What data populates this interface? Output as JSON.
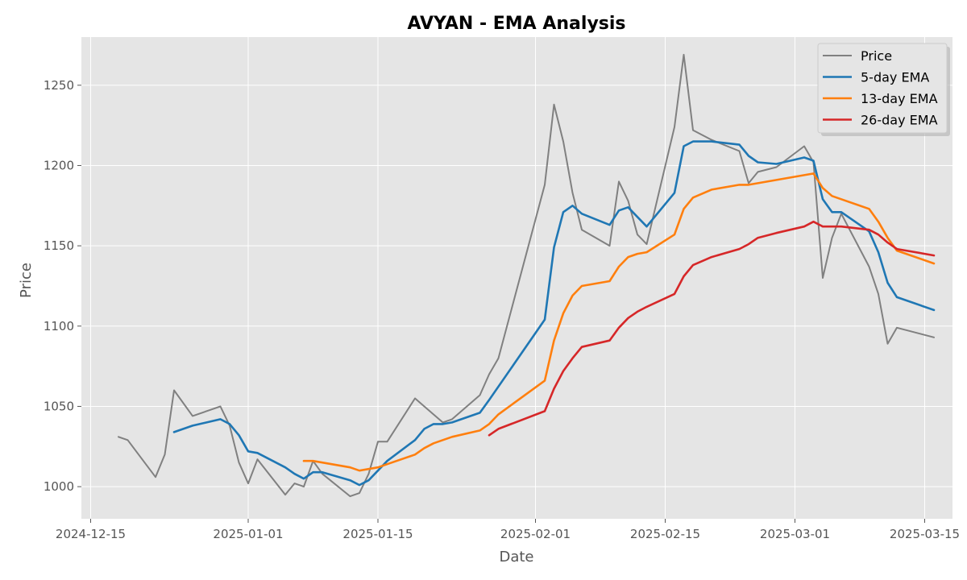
{
  "chart_data": {
    "type": "line",
    "title": "AVYAN - EMA Analysis",
    "xlabel": "Date",
    "ylabel": "Price",
    "grid": true,
    "legend_position": "top-right",
    "x_domain": [
      "2024-12-14",
      "2025-03-18"
    ],
    "ylim": [
      980,
      1280
    ],
    "x_ticks": [
      "2024-12-15",
      "2025-01-01",
      "2025-01-15",
      "2025-02-01",
      "2025-02-15",
      "2025-03-01",
      "2025-03-15"
    ],
    "y_ticks": [
      1000,
      1050,
      1100,
      1150,
      1200,
      1250
    ],
    "series": [
      {
        "name": "Price",
        "color": "#808080",
        "points": [
          [
            "2024-12-18",
            1031
          ],
          [
            "2024-12-19",
            1029
          ],
          [
            "2024-12-22",
            1006
          ],
          [
            "2024-12-23",
            1020
          ],
          [
            "2024-12-24",
            1060
          ],
          [
            "2024-12-26",
            1044
          ],
          [
            "2024-12-29",
            1050
          ],
          [
            "2024-12-30",
            1038
          ],
          [
            "2024-12-31",
            1015
          ],
          [
            "2025-01-01",
            1002
          ],
          [
            "2025-01-02",
            1017
          ],
          [
            "2025-01-05",
            995
          ],
          [
            "2025-01-06",
            1002
          ],
          [
            "2025-01-07",
            1000
          ],
          [
            "2025-01-08",
            1016
          ],
          [
            "2025-01-09",
            1008
          ],
          [
            "2025-01-12",
            994
          ],
          [
            "2025-01-13",
            996
          ],
          [
            "2025-01-14",
            1008
          ],
          [
            "2025-01-15",
            1028
          ],
          [
            "2025-01-16",
            1028
          ],
          [
            "2025-01-19",
            1055
          ],
          [
            "2025-01-20",
            1050
          ],
          [
            "2025-01-22",
            1040
          ],
          [
            "2025-01-23",
            1042
          ],
          [
            "2025-01-26",
            1057
          ],
          [
            "2025-01-27",
            1070
          ],
          [
            "2025-01-28",
            1080
          ],
          [
            "2025-02-02",
            1188
          ],
          [
            "2025-02-03",
            1238
          ],
          [
            "2025-02-04",
            1215
          ],
          [
            "2025-02-05",
            1183
          ],
          [
            "2025-02-06",
            1160
          ],
          [
            "2025-02-09",
            1150
          ],
          [
            "2025-02-10",
            1190
          ],
          [
            "2025-02-11",
            1178
          ],
          [
            "2025-02-12",
            1157
          ],
          [
            "2025-02-13",
            1151
          ],
          [
            "2025-02-16",
            1224
          ],
          [
            "2025-02-17",
            1269
          ],
          [
            "2025-02-18",
            1222
          ],
          [
            "2025-02-19",
            1219
          ],
          [
            "2025-02-20",
            1216
          ],
          [
            "2025-02-23",
            1209
          ],
          [
            "2025-02-24",
            1189
          ],
          [
            "2025-02-25",
            1196
          ],
          [
            "2025-02-27",
            1199
          ],
          [
            "2025-03-02",
            1212
          ],
          [
            "2025-03-03",
            1202
          ],
          [
            "2025-03-04",
            1130
          ],
          [
            "2025-03-05",
            1155
          ],
          [
            "2025-03-06",
            1170
          ],
          [
            "2025-03-09",
            1137
          ],
          [
            "2025-03-10",
            1120
          ],
          [
            "2025-03-11",
            1089
          ],
          [
            "2025-03-12",
            1099
          ],
          [
            "2025-03-16",
            1093
          ]
        ]
      },
      {
        "name": "5-day EMA",
        "color": "#1f77b4",
        "points": [
          [
            "2024-12-24",
            1034
          ],
          [
            "2024-12-26",
            1038
          ],
          [
            "2024-12-29",
            1042
          ],
          [
            "2024-12-30",
            1039
          ],
          [
            "2024-12-31",
            1032
          ],
          [
            "2025-01-01",
            1022
          ],
          [
            "2025-01-02",
            1021
          ],
          [
            "2025-01-05",
            1012
          ],
          [
            "2025-01-06",
            1008
          ],
          [
            "2025-01-07",
            1005
          ],
          [
            "2025-01-08",
            1009
          ],
          [
            "2025-01-09",
            1009
          ],
          [
            "2025-01-12",
            1004
          ],
          [
            "2025-01-13",
            1001
          ],
          [
            "2025-01-14",
            1004
          ],
          [
            "2025-01-15",
            1010
          ],
          [
            "2025-01-16",
            1016
          ],
          [
            "2025-01-19",
            1029
          ],
          [
            "2025-01-20",
            1036
          ],
          [
            "2025-01-21",
            1039
          ],
          [
            "2025-01-22",
            1039
          ],
          [
            "2025-01-23",
            1040
          ],
          [
            "2025-01-26",
            1046
          ],
          [
            "2025-01-27",
            1054
          ],
          [
            "2025-02-02",
            1104
          ],
          [
            "2025-02-03",
            1149
          ],
          [
            "2025-02-04",
            1171
          ],
          [
            "2025-02-05",
            1175
          ],
          [
            "2025-02-06",
            1170
          ],
          [
            "2025-02-09",
            1163
          ],
          [
            "2025-02-10",
            1172
          ],
          [
            "2025-02-11",
            1174
          ],
          [
            "2025-02-12",
            1168
          ],
          [
            "2025-02-13",
            1162
          ],
          [
            "2025-02-16",
            1183
          ],
          [
            "2025-02-17",
            1212
          ],
          [
            "2025-02-18",
            1215
          ],
          [
            "2025-02-20",
            1215
          ],
          [
            "2025-02-23",
            1213
          ],
          [
            "2025-02-24",
            1206
          ],
          [
            "2025-02-25",
            1202
          ],
          [
            "2025-02-27",
            1201
          ],
          [
            "2025-03-02",
            1205
          ],
          [
            "2025-03-03",
            1203
          ],
          [
            "2025-03-04",
            1179
          ],
          [
            "2025-03-05",
            1171
          ],
          [
            "2025-03-06",
            1171
          ],
          [
            "2025-03-09",
            1159
          ],
          [
            "2025-03-10",
            1146
          ],
          [
            "2025-03-11",
            1127
          ],
          [
            "2025-03-12",
            1118
          ],
          [
            "2025-03-16",
            1110
          ]
        ]
      },
      {
        "name": "13-day EMA",
        "color": "#ff7f0e",
        "points": [
          [
            "2025-01-07",
            1016
          ],
          [
            "2025-01-08",
            1016
          ],
          [
            "2025-01-09",
            1015
          ],
          [
            "2025-01-12",
            1012
          ],
          [
            "2025-01-13",
            1010
          ],
          [
            "2025-01-14",
            1011
          ],
          [
            "2025-01-15",
            1012
          ],
          [
            "2025-01-16",
            1014
          ],
          [
            "2025-01-19",
            1020
          ],
          [
            "2025-01-20",
            1024
          ],
          [
            "2025-01-21",
            1027
          ],
          [
            "2025-01-22",
            1029
          ],
          [
            "2025-01-23",
            1031
          ],
          [
            "2025-01-26",
            1035
          ],
          [
            "2025-01-27",
            1039
          ],
          [
            "2025-01-28",
            1045
          ],
          [
            "2025-02-02",
            1066
          ],
          [
            "2025-02-03",
            1091
          ],
          [
            "2025-02-04",
            1108
          ],
          [
            "2025-02-05",
            1119
          ],
          [
            "2025-02-06",
            1125
          ],
          [
            "2025-02-09",
            1128
          ],
          [
            "2025-02-10",
            1137
          ],
          [
            "2025-02-11",
            1143
          ],
          [
            "2025-02-12",
            1145
          ],
          [
            "2025-02-13",
            1146
          ],
          [
            "2025-02-16",
            1157
          ],
          [
            "2025-02-17",
            1173
          ],
          [
            "2025-02-18",
            1180
          ],
          [
            "2025-02-20",
            1185
          ],
          [
            "2025-02-23",
            1188
          ],
          [
            "2025-02-24",
            1188
          ],
          [
            "2025-02-25",
            1189
          ],
          [
            "2025-02-27",
            1191
          ],
          [
            "2025-03-02",
            1194
          ],
          [
            "2025-03-03",
            1195
          ],
          [
            "2025-03-04",
            1186
          ],
          [
            "2025-03-05",
            1181
          ],
          [
            "2025-03-06",
            1179
          ],
          [
            "2025-03-09",
            1173
          ],
          [
            "2025-03-10",
            1165
          ],
          [
            "2025-03-11",
            1155
          ],
          [
            "2025-03-12",
            1147
          ],
          [
            "2025-03-16",
            1139
          ]
        ]
      },
      {
        "name": "26-day EMA",
        "color": "#d62728",
        "points": [
          [
            "2025-01-27",
            1032
          ],
          [
            "2025-01-28",
            1036
          ],
          [
            "2025-02-02",
            1047
          ],
          [
            "2025-02-03",
            1061
          ],
          [
            "2025-02-04",
            1072
          ],
          [
            "2025-02-05",
            1080
          ],
          [
            "2025-02-06",
            1087
          ],
          [
            "2025-02-09",
            1091
          ],
          [
            "2025-02-10",
            1099
          ],
          [
            "2025-02-11",
            1105
          ],
          [
            "2025-02-12",
            1109
          ],
          [
            "2025-02-13",
            1112
          ],
          [
            "2025-02-16",
            1120
          ],
          [
            "2025-02-17",
            1131
          ],
          [
            "2025-02-18",
            1138
          ],
          [
            "2025-02-20",
            1143
          ],
          [
            "2025-02-23",
            1148
          ],
          [
            "2025-02-24",
            1151
          ],
          [
            "2025-02-25",
            1155
          ],
          [
            "2025-02-27",
            1158
          ],
          [
            "2025-03-02",
            1162
          ],
          [
            "2025-03-03",
            1165
          ],
          [
            "2025-03-04",
            1162
          ],
          [
            "2025-03-05",
            1162
          ],
          [
            "2025-03-06",
            1162
          ],
          [
            "2025-03-09",
            1160
          ],
          [
            "2025-03-10",
            1157
          ],
          [
            "2025-03-11",
            1152
          ],
          [
            "2025-03-12",
            1148
          ],
          [
            "2025-03-16",
            1144
          ]
        ]
      }
    ]
  }
}
